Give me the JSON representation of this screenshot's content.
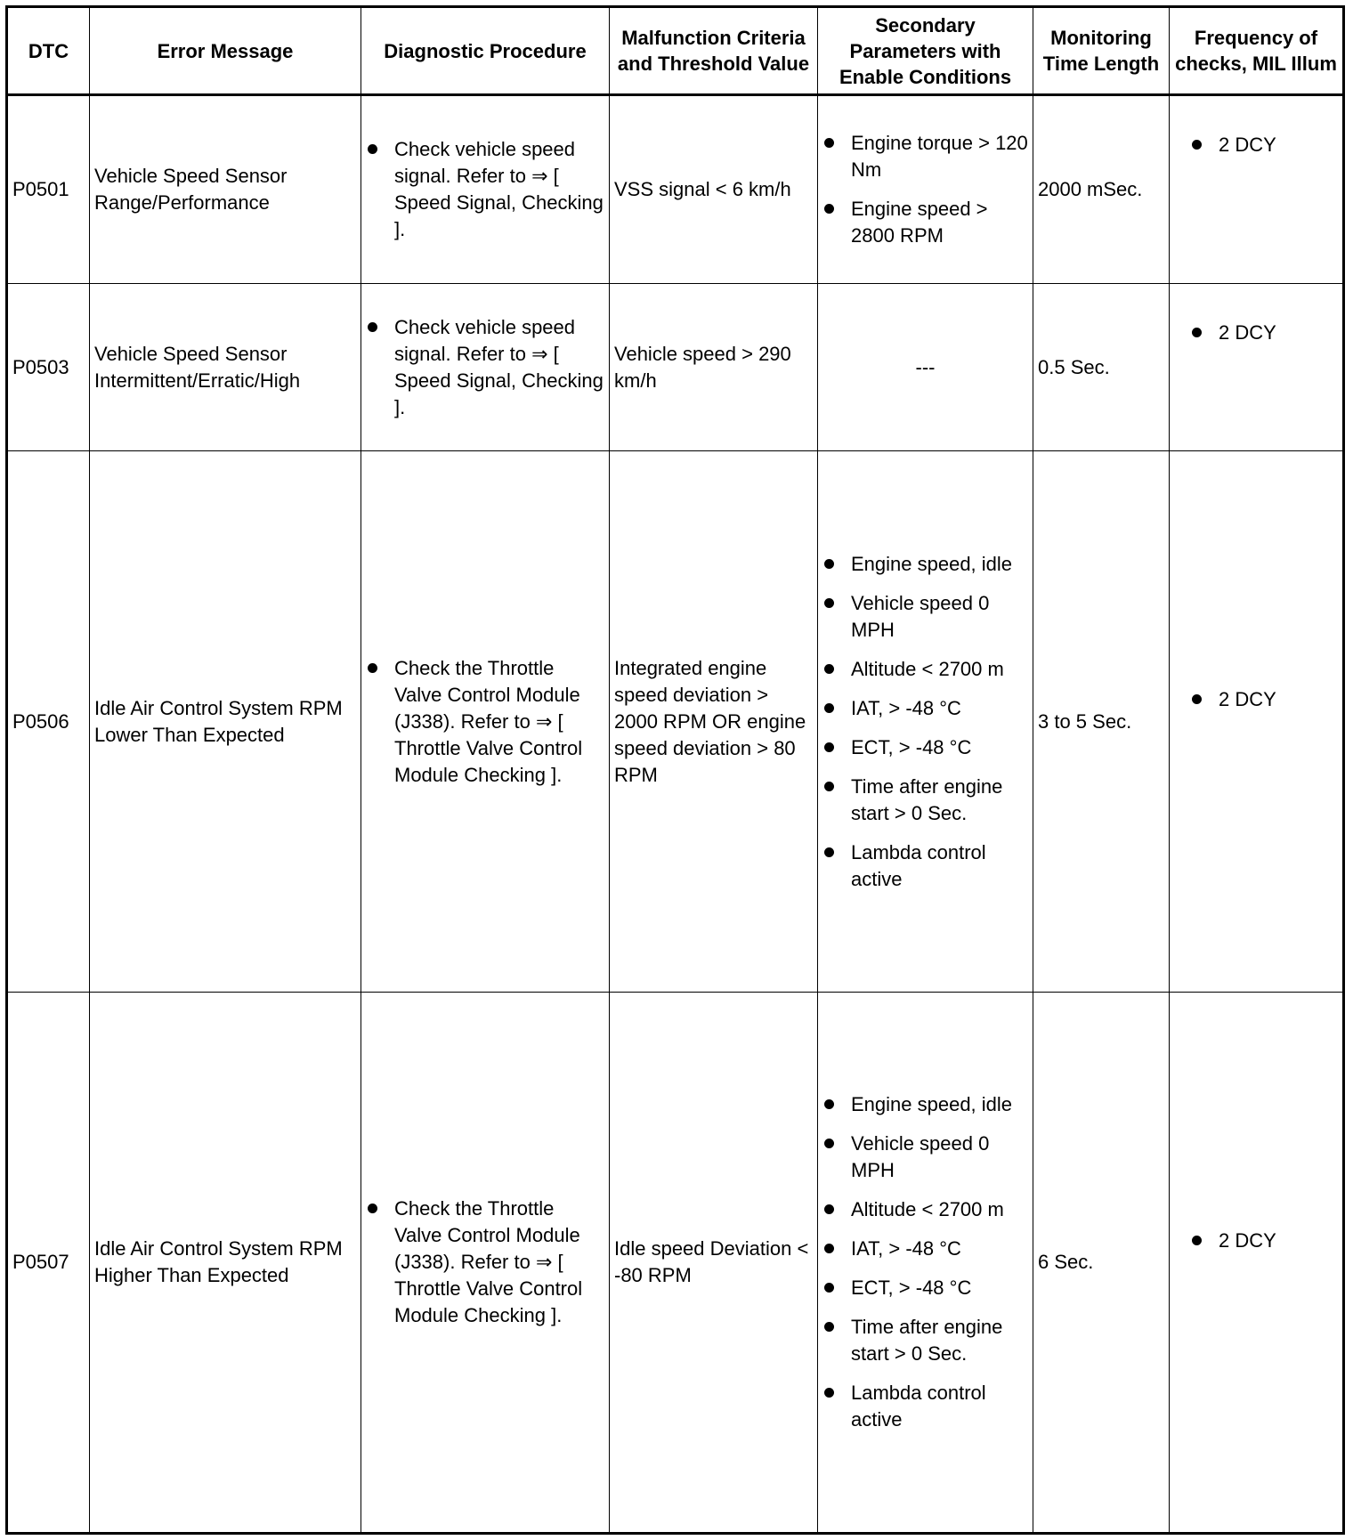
{
  "headers": [
    "DTC",
    "Error Message",
    "Diagnostic Procedure",
    "Malfunction Criteria and Threshold Value",
    "Secondary Parameters with Enable Conditions",
    "Monitoring Time Length",
    "Frequency of checks, MIL Illum"
  ],
  "rows": [
    {
      "dtc": "P0501",
      "error": "Vehicle Speed Sensor Range/Performance",
      "procedure": [
        "Check vehicle speed signal. Refer to ⇒ [ Speed Signal, Checking ]."
      ],
      "criteria": "VSS signal < 6 km/h",
      "secondary": [
        "Engine torque > 120 Nm",
        "Engine speed > 2800 RPM"
      ],
      "secondary_text": "",
      "time": "2000 mSec.",
      "frequency": [
        "2 DCY"
      ]
    },
    {
      "dtc": "P0503",
      "error": "Vehicle Speed Sensor Intermittent/Erratic/High",
      "procedure": [
        "Check vehicle speed signal. Refer to ⇒ [ Speed Signal, Checking ]."
      ],
      "criteria": "Vehicle speed > 290 km/h",
      "secondary": [],
      "secondary_text": "---",
      "time": "0.5 Sec.",
      "frequency": [
        "2 DCY"
      ]
    },
    {
      "dtc": "P0506",
      "error": "Idle Air Control System RPM Lower Than Expected",
      "procedure": [
        "Check the Throttle Valve Control Module (J338). Refer to ⇒ [ Throttle Valve Control Module Checking ]."
      ],
      "criteria": "Integrated engine speed deviation > 2000 RPM OR engine speed deviation > 80 RPM",
      "secondary": [
        "Engine speed, idle",
        "Vehicle speed 0 MPH",
        "Altitude < 2700 m",
        "IAT, > -48 °C",
        "ECT, > -48 °C",
        "Time after engine start > 0 Sec.",
        "Lambda control active"
      ],
      "secondary_text": "",
      "time": "3 to 5 Sec.",
      "frequency": [
        "2 DCY"
      ]
    },
    {
      "dtc": "P0507",
      "error": "Idle Air Control System RPM Higher Than Expected",
      "procedure": [
        "Check the Throttle Valve Control Module (J338). Refer to ⇒ [ Throttle Valve Control Module Checking ]."
      ],
      "criteria": "Idle speed Deviation < -80 RPM",
      "secondary": [
        "Engine speed, idle",
        "Vehicle speed 0 MPH",
        "Altitude < 2700 m",
        "IAT, > -48 °C",
        "ECT, > -48 °C",
        "Time after engine start > 0 Sec.",
        "Lambda control active"
      ],
      "secondary_text": "",
      "time": "6 Sec.",
      "frequency": [
        "2 DCY"
      ]
    }
  ]
}
